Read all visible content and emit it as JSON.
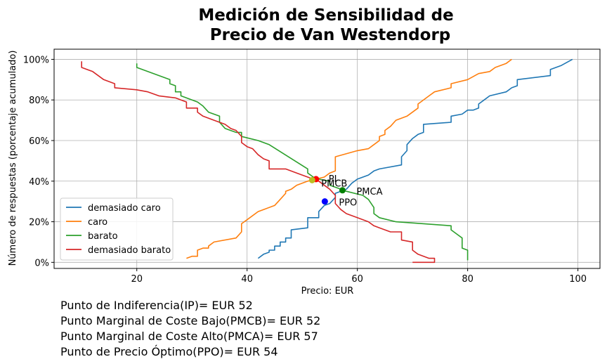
{
  "chart_data": {
    "type": "line",
    "title_lines": [
      "Medición de Sensibilidad de",
      "Precio de Van Westendorp"
    ],
    "xlabel": "Precio: EUR",
    "ylabel": "Número de respuestas (porcentaje acumulado)",
    "xlim": [
      5,
      104
    ],
    "ylim": [
      -0.03,
      1.05
    ],
    "xticks": [
      20,
      40,
      60,
      80,
      100
    ],
    "xtick_labels": [
      "20",
      "40",
      "60",
      "80",
      "100"
    ],
    "yticks": [
      0,
      0.2,
      0.4,
      0.6,
      0.8,
      1.0
    ],
    "ytick_labels": [
      "0%",
      "20%",
      "40%",
      "60%",
      "80%",
      "100%"
    ],
    "grid": true,
    "legend_position": "lower-left",
    "series": [
      {
        "name": "demasiado caro",
        "color": "#1f77b4",
        "points": [
          [
            42,
            0.02
          ],
          [
            43,
            0.04
          ],
          [
            44,
            0.05
          ],
          [
            44,
            0.06
          ],
          [
            45,
            0.06
          ],
          [
            45,
            0.08
          ],
          [
            46,
            0.08
          ],
          [
            46,
            0.1
          ],
          [
            47,
            0.1
          ],
          [
            47,
            0.12
          ],
          [
            48,
            0.12
          ],
          [
            48,
            0.16
          ],
          [
            51,
            0.17
          ],
          [
            51,
            0.22
          ],
          [
            53,
            0.22
          ],
          [
            53,
            0.25
          ],
          [
            54,
            0.28
          ],
          [
            55,
            0.29
          ],
          [
            56,
            0.32
          ],
          [
            56,
            0.34
          ],
          [
            57,
            0.35
          ],
          [
            58,
            0.36
          ],
          [
            59,
            0.39
          ],
          [
            60,
            0.41
          ],
          [
            62,
            0.43
          ],
          [
            63,
            0.45
          ],
          [
            64,
            0.46
          ],
          [
            68,
            0.48
          ],
          [
            68,
            0.52
          ],
          [
            69,
            0.55
          ],
          [
            69,
            0.58
          ],
          [
            70,
            0.61
          ],
          [
            71,
            0.63
          ],
          [
            72,
            0.64
          ],
          [
            72,
            0.68
          ],
          [
            77,
            0.69
          ],
          [
            77,
            0.72
          ],
          [
            79,
            0.73
          ],
          [
            80,
            0.75
          ],
          [
            81,
            0.75
          ],
          [
            82,
            0.76
          ],
          [
            82,
            0.78
          ],
          [
            83,
            0.8
          ],
          [
            84,
            0.82
          ],
          [
            87,
            0.84
          ],
          [
            88,
            0.86
          ],
          [
            89,
            0.87
          ],
          [
            89,
            0.9
          ],
          [
            95,
            0.92
          ],
          [
            95,
            0.95
          ],
          [
            97,
            0.97
          ],
          [
            99,
            1.0
          ]
        ]
      },
      {
        "name": "caro",
        "color": "#ff7f0e",
        "points": [
          [
            29,
            0.02
          ],
          [
            30,
            0.03
          ],
          [
            31,
            0.03
          ],
          [
            31,
            0.06
          ],
          [
            32,
            0.07
          ],
          [
            33,
            0.07
          ],
          [
            33,
            0.08
          ],
          [
            34,
            0.1
          ],
          [
            38,
            0.12
          ],
          [
            39,
            0.15
          ],
          [
            39,
            0.19
          ],
          [
            40,
            0.21
          ],
          [
            42,
            0.25
          ],
          [
            43,
            0.26
          ],
          [
            45,
            0.28
          ],
          [
            46,
            0.31
          ],
          [
            47,
            0.34
          ],
          [
            47,
            0.35
          ],
          [
            48,
            0.36
          ],
          [
            49,
            0.38
          ],
          [
            51,
            0.4
          ],
          [
            54,
            0.42
          ],
          [
            55,
            0.44
          ],
          [
            56,
            0.45
          ],
          [
            56,
            0.52
          ],
          [
            60,
            0.55
          ],
          [
            62,
            0.56
          ],
          [
            63,
            0.58
          ],
          [
            64,
            0.6
          ],
          [
            64,
            0.62
          ],
          [
            65,
            0.63
          ],
          [
            65,
            0.65
          ],
          [
            66,
            0.67
          ],
          [
            67,
            0.7
          ],
          [
            69,
            0.72
          ],
          [
            71,
            0.76
          ],
          [
            71,
            0.78
          ],
          [
            73,
            0.82
          ],
          [
            74,
            0.84
          ],
          [
            77,
            0.86
          ],
          [
            77,
            0.88
          ],
          [
            80,
            0.9
          ],
          [
            82,
            0.93
          ],
          [
            84,
            0.94
          ],
          [
            85,
            0.96
          ],
          [
            87,
            0.98
          ],
          [
            88,
            1.0
          ]
        ]
      },
      {
        "name": "barato",
        "color": "#2ca02c",
        "points": [
          [
            20,
            0.98
          ],
          [
            20,
            0.96
          ],
          [
            26,
            0.9
          ],
          [
            26,
            0.88
          ],
          [
            27,
            0.87
          ],
          [
            27,
            0.84
          ],
          [
            28,
            0.84
          ],
          [
            28,
            0.82
          ],
          [
            31,
            0.79
          ],
          [
            32,
            0.77
          ],
          [
            33,
            0.74
          ],
          [
            35,
            0.72
          ],
          [
            35,
            0.69
          ],
          [
            36,
            0.66
          ],
          [
            37,
            0.65
          ],
          [
            38,
            0.64
          ],
          [
            39,
            0.64
          ],
          [
            39,
            0.62
          ],
          [
            42,
            0.6
          ],
          [
            44,
            0.58
          ],
          [
            51,
            0.46
          ],
          [
            51,
            0.44
          ],
          [
            52,
            0.42
          ],
          [
            53,
            0.41
          ],
          [
            55,
            0.4
          ],
          [
            55,
            0.38
          ],
          [
            56,
            0.37
          ],
          [
            57,
            0.36
          ],
          [
            58,
            0.35
          ],
          [
            61,
            0.33
          ],
          [
            62,
            0.31
          ],
          [
            63,
            0.27
          ],
          [
            63,
            0.24
          ],
          [
            64,
            0.22
          ],
          [
            67,
            0.2
          ],
          [
            77,
            0.18
          ],
          [
            77,
            0.16
          ],
          [
            78,
            0.14
          ],
          [
            79,
            0.12
          ],
          [
            79,
            0.07
          ],
          [
            80,
            0.06
          ],
          [
            80,
            0.01
          ]
        ]
      },
      {
        "name": "demasiado barato",
        "color": "#d62728",
        "points": [
          [
            10,
            0.99
          ],
          [
            10,
            0.96
          ],
          [
            12,
            0.94
          ],
          [
            14,
            0.9
          ],
          [
            16,
            0.88
          ],
          [
            16,
            0.86
          ],
          [
            20,
            0.85
          ],
          [
            22,
            0.84
          ],
          [
            24,
            0.82
          ],
          [
            27,
            0.81
          ],
          [
            28,
            0.8
          ],
          [
            29,
            0.79
          ],
          [
            29,
            0.76
          ],
          [
            31,
            0.76
          ],
          [
            31,
            0.74
          ],
          [
            32,
            0.72
          ],
          [
            34,
            0.7
          ],
          [
            36,
            0.68
          ],
          [
            37,
            0.66
          ],
          [
            38,
            0.65
          ],
          [
            39,
            0.62
          ],
          [
            39,
            0.59
          ],
          [
            40,
            0.57
          ],
          [
            41,
            0.56
          ],
          [
            42,
            0.53
          ],
          [
            43,
            0.51
          ],
          [
            44,
            0.5
          ],
          [
            44,
            0.46
          ],
          [
            47,
            0.46
          ],
          [
            49,
            0.44
          ],
          [
            51,
            0.42
          ],
          [
            52,
            0.41
          ],
          [
            53,
            0.4
          ],
          [
            55,
            0.36
          ],
          [
            56,
            0.33
          ],
          [
            56,
            0.29
          ],
          [
            57,
            0.26
          ],
          [
            58,
            0.24
          ],
          [
            60,
            0.22
          ],
          [
            62,
            0.2
          ],
          [
            63,
            0.18
          ],
          [
            64,
            0.17
          ],
          [
            66,
            0.15
          ],
          [
            68,
            0.15
          ],
          [
            68,
            0.11
          ],
          [
            70,
            0.1
          ],
          [
            70,
            0.06
          ],
          [
            71,
            0.04
          ],
          [
            73,
            0.02
          ],
          [
            74,
            0.02
          ],
          [
            74,
            0.0
          ],
          [
            70,
            0.0
          ]
        ]
      }
    ],
    "annotations": [
      {
        "label": "PI",
        "x": 52.5,
        "y": 0.41,
        "color": "#ff0000",
        "dx": 18,
        "dy": 4
      },
      {
        "label": "PMCB",
        "x": 51.8,
        "y": 0.405,
        "color": "#bcbd22",
        "dx": 13,
        "dy": 9
      },
      {
        "label": "PMCA",
        "x": 57.3,
        "y": 0.355,
        "color": "#008000",
        "dx": 20,
        "dy": 6
      },
      {
        "label": "PPO",
        "x": 54.1,
        "y": 0.3,
        "color": "#0000ff",
        "dx": 20,
        "dy": 6
      }
    ]
  },
  "results": [
    "Punto de Indiferencia(IP)= EUR 52",
    "Punto Marginal de Coste Bajo(PMCB)= EUR 52",
    "Punto Marginal de Coste Alto(PMCA)= EUR 57",
    "Punto de Precio Óptimo(PPO)= EUR 54"
  ]
}
